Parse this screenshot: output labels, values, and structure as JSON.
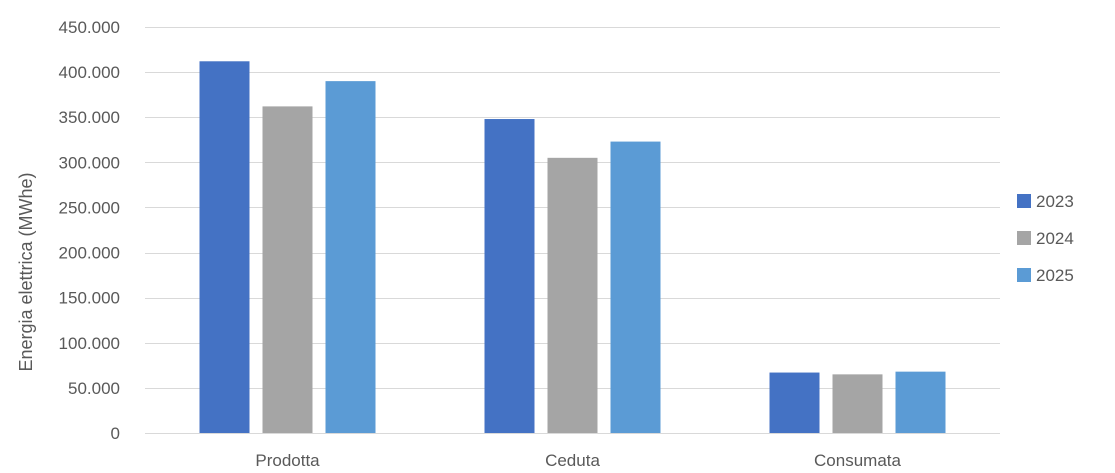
{
  "chart_data": {
    "type": "bar",
    "title": "",
    "xlabel": "",
    "ylabel": "Energia elettrica (MWhe)",
    "categories": [
      "Prodotta",
      "Ceduta",
      "Consumata"
    ],
    "series": [
      {
        "name": "2023",
        "color": "#4472C4",
        "values": [
          412000,
          348000,
          67000
        ]
      },
      {
        "name": "2024",
        "color": "#A5A5A5",
        "values": [
          362000,
          305000,
          65000
        ]
      },
      {
        "name": "2025",
        "color": "#5B9BD5",
        "values": [
          390000,
          323000,
          68000
        ]
      }
    ],
    "ylim": [
      0,
      450000
    ],
    "yticks": [
      0,
      50000,
      100000,
      150000,
      200000,
      250000,
      300000,
      350000,
      400000,
      450000
    ],
    "ytick_labels": [
      "0",
      "50.000",
      "100.000",
      "150.000",
      "200.000",
      "250.000",
      "300.000",
      "350.000",
      "400.000",
      "450.000"
    ],
    "grid": "horizontal",
    "legend_position": "right"
  }
}
